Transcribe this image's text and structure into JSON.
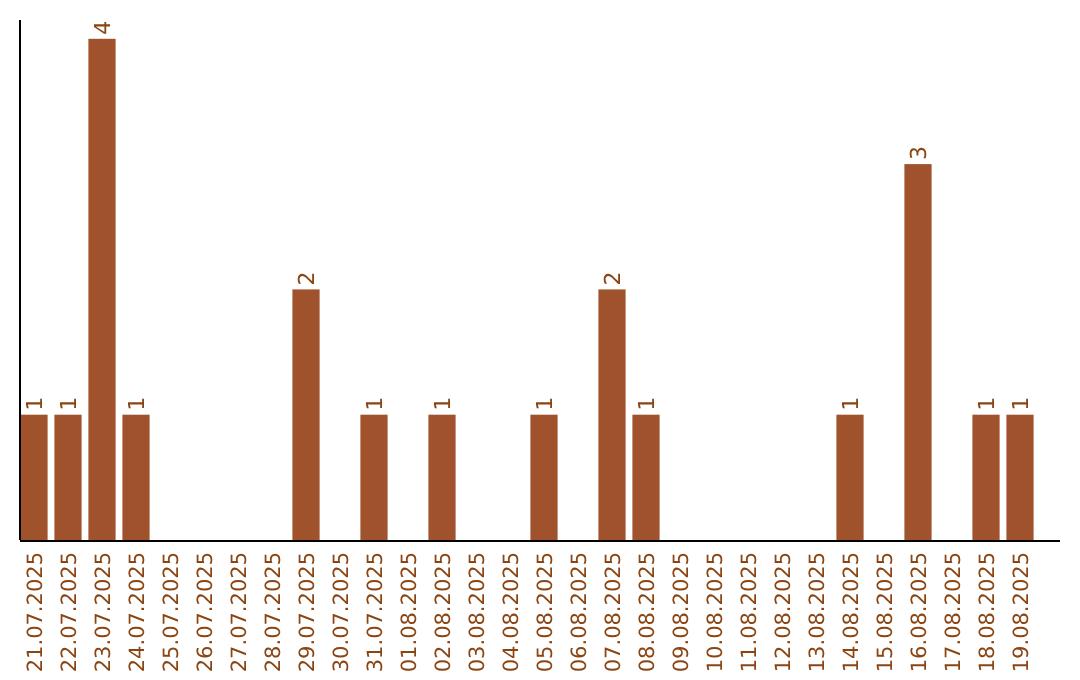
{
  "chart_data": {
    "type": "bar",
    "categories": [
      "21.07.2025",
      "22.07.2025",
      "23.07.2025",
      "24.07.2025",
      "25.07.2025",
      "26.07.2025",
      "27.07.2025",
      "28.07.2025",
      "29.07.2025",
      "30.07.2025",
      "31.07.2025",
      "01.08.2025",
      "02.08.2025",
      "03.08.2025",
      "04.08.2025",
      "05.08.2025",
      "06.08.2025",
      "07.08.2025",
      "08.08.2025",
      "09.08.2025",
      "10.08.2025",
      "11.08.2025",
      "12.08.2025",
      "13.08.2025",
      "14.08.2025",
      "15.08.2025",
      "16.08.2025",
      "17.08.2025",
      "18.08.2025",
      "19.08.2025"
    ],
    "values": [
      1,
      1,
      4,
      1,
      null,
      null,
      null,
      null,
      2,
      null,
      1,
      null,
      1,
      null,
      null,
      1,
      null,
      2,
      1,
      null,
      null,
      null,
      null,
      null,
      1,
      null,
      3,
      null,
      1,
      1
    ],
    "color": "#a0522d",
    "ylim": [
      0,
      4.15
    ],
    "data_labels": true,
    "tick_labels": "x"
  }
}
